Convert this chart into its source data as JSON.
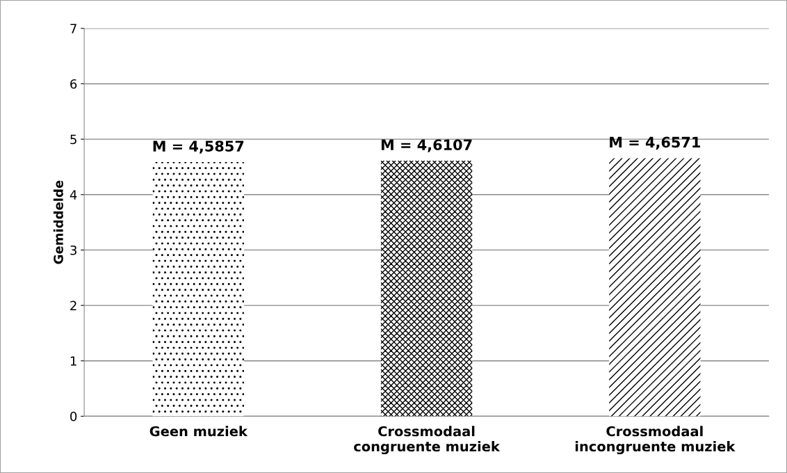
{
  "chart_data": {
    "type": "bar",
    "ylabel": "Gemiddelde",
    "categories": [
      "Geen muziek",
      "Crossmodaal\ncongruente muziek",
      "Crossmodaal\nincongruente muziek"
    ],
    "values": [
      4.5857,
      4.6107,
      4.6571
    ],
    "value_labels": [
      "M = 4,5857",
      "M = 4,6107",
      "M = 4,6571"
    ],
    "color": "#000000",
    "ylim": [
      0,
      7
    ],
    "yticks": [
      0,
      1,
      2,
      3,
      4,
      5,
      6,
      7
    ],
    "grid": "y",
    "legend": false
  }
}
